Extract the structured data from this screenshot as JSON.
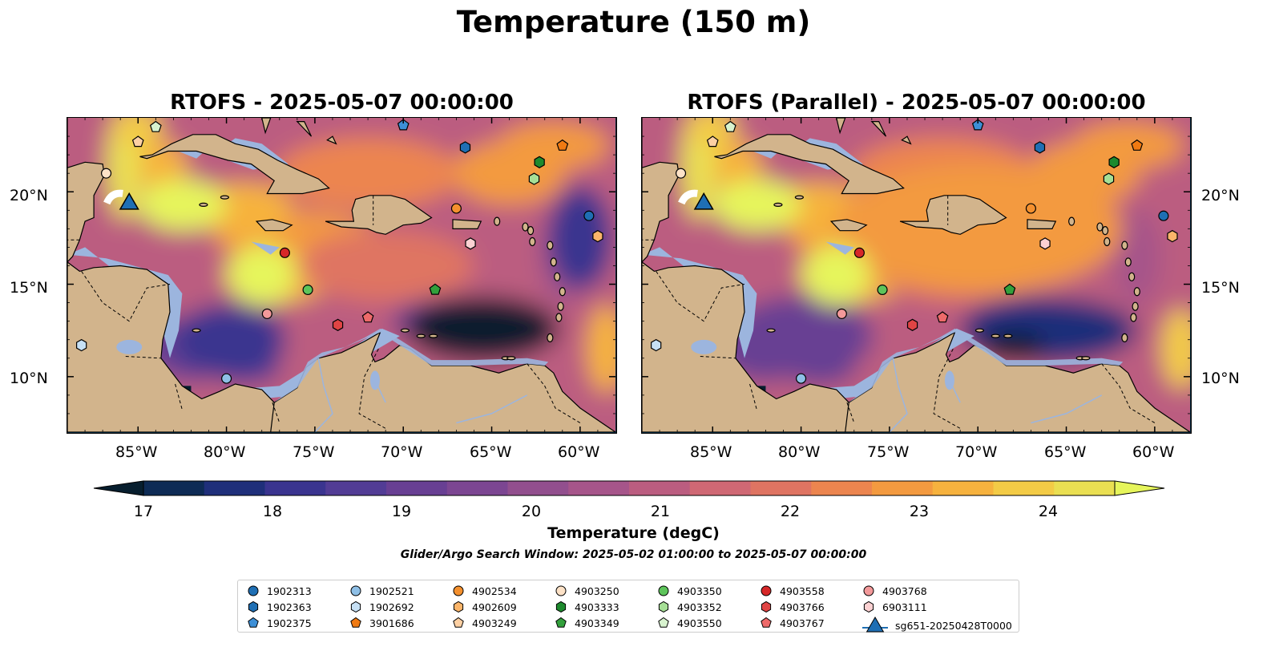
{
  "figure": {
    "suptitle": "Temperature (150 m)",
    "search_window": "Glider/Argo Search Window: 2025-05-02 01:00:00 to 2025-05-07 00:00:00"
  },
  "maps": [
    {
      "title": "RTOFS - 2025-05-07 00:00:00"
    },
    {
      "title": "RTOFS (Parallel) - 2025-05-07 00:00:00"
    }
  ],
  "axes": {
    "lon_labels": [
      "85°W",
      "80°W",
      "75°W",
      "70°W",
      "65°W",
      "60°W"
    ],
    "lat_labels": [
      "20°N",
      "15°N",
      "10°N"
    ],
    "lon_range": [
      -89,
      -58
    ],
    "lat_range": [
      7,
      24
    ]
  },
  "colorbar": {
    "label": "Temperature (degC)",
    "ticks": [
      "17",
      "18",
      "19",
      "20",
      "21",
      "22",
      "23",
      "24"
    ],
    "range": [
      16.75,
      24.75
    ],
    "colors": [
      "#071e2e",
      "#0e2b55",
      "#1f2f7a",
      "#3a348f",
      "#523c95",
      "#683f93",
      "#7c4692",
      "#924f8e",
      "#a6558a",
      "#bb5d80",
      "#cf6874",
      "#df7462",
      "#ec854f",
      "#f39a40",
      "#f6b23e",
      "#f3cb46",
      "#eadf52",
      "#e6f55b"
    ],
    "land": "#d2b48c",
    "shallow": "#9cb5de"
  },
  "legend": {
    "items": [
      {
        "id": "1902313",
        "shape": "circle",
        "color": "#1f6fb4"
      },
      {
        "id": "1902363",
        "shape": "hexagon",
        "color": "#1f6fb4"
      },
      {
        "id": "1902375",
        "shape": "pentagon",
        "color": "#3d8fd6"
      },
      {
        "id": "1902521",
        "shape": "circle",
        "color": "#8ebfe6"
      },
      {
        "id": "1902692",
        "shape": "hexagon",
        "color": "#c6e0f5"
      },
      {
        "id": "3901686",
        "shape": "pentagon",
        "color": "#f07a12"
      },
      {
        "id": "4902534",
        "shape": "circle",
        "color": "#f4902e"
      },
      {
        "id": "4902609",
        "shape": "hexagon",
        "color": "#fbb56a"
      },
      {
        "id": "4903249",
        "shape": "pentagon",
        "color": "#fdd0a3"
      },
      {
        "id": "4903250",
        "shape": "circle",
        "color": "#fde2c7"
      },
      {
        "id": "4903333",
        "shape": "hexagon",
        "color": "#1e8a2e"
      },
      {
        "id": "4903349",
        "shape": "pentagon",
        "color": "#33a03c"
      },
      {
        "id": "4903350",
        "shape": "circle",
        "color": "#5dc45a"
      },
      {
        "id": "4903352",
        "shape": "hexagon",
        "color": "#a6df96"
      },
      {
        "id": "4903550",
        "shape": "pentagon",
        "color": "#d8f3cf"
      },
      {
        "id": "4903558",
        "shape": "circle",
        "color": "#d62728"
      },
      {
        "id": "4903766",
        "shape": "hexagon",
        "color": "#e04444"
      },
      {
        "id": "4903767",
        "shape": "pentagon",
        "color": "#ee6a6a"
      },
      {
        "id": "4903768",
        "shape": "circle",
        "color": "#f3999a"
      },
      {
        "id": "6903111",
        "shape": "hexagon",
        "color": "#fbd1d2"
      },
      {
        "id": "sg651-20250428T0000",
        "shape": "triangle",
        "color": "#1f6fb4"
      }
    ]
  },
  "floats_map1": [
    {
      "id": "1902313",
      "lon": -59.5,
      "lat": 18.7
    },
    {
      "id": "1902363",
      "lon": -66.5,
      "lat": 22.4
    },
    {
      "id": "1902375",
      "lon": -70.0,
      "lat": 23.6
    },
    {
      "id": "1902521",
      "lon": -80.0,
      "lat": 9.9
    },
    {
      "id": "1902692",
      "lon": -88.2,
      "lat": 11.7
    },
    {
      "id": "3901686",
      "lon": -61.0,
      "lat": 22.5
    },
    {
      "id": "4902534",
      "lon": -67.0,
      "lat": 19.1
    },
    {
      "id": "4902609",
      "lon": -59.0,
      "lat": 17.6
    },
    {
      "id": "4903249",
      "lon": -85.0,
      "lat": 22.7
    },
    {
      "id": "4903250",
      "lon": -86.8,
      "lat": 21.0
    },
    {
      "id": "4903333",
      "lon": -62.3,
      "lat": 21.6
    },
    {
      "id": "4903349",
      "lon": -68.2,
      "lat": 14.7
    },
    {
      "id": "4903350",
      "lon": -75.4,
      "lat": 14.7
    },
    {
      "id": "4903352",
      "lon": -62.6,
      "lat": 20.7
    },
    {
      "id": "4903550",
      "lon": -84.0,
      "lat": 23.5
    },
    {
      "id": "4903558",
      "lon": -76.7,
      "lat": 16.7
    },
    {
      "id": "4903766",
      "lon": -73.7,
      "lat": 12.8
    },
    {
      "id": "4903767",
      "lon": -72.0,
      "lat": 13.2
    },
    {
      "id": "4903768",
      "lon": -77.7,
      "lat": 13.4
    },
    {
      "id": "6903111",
      "lon": -66.2,
      "lat": 17.2
    }
  ],
  "glider": {
    "id": "sg651-20250428T0000",
    "lon": -85.5,
    "lat": 19.3
  }
}
